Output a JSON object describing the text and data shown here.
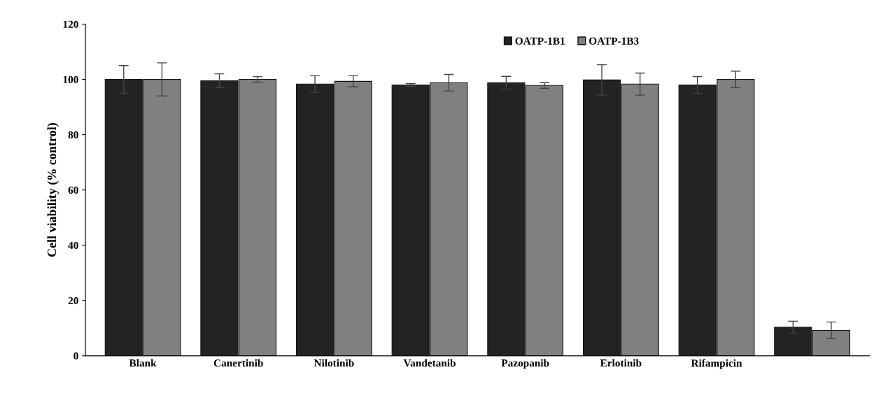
{
  "chart_data": {
    "type": "bar",
    "ylabel": "Cell viability (% control)",
    "categories": [
      "Blank",
      "Canertinib",
      "Nilotinib",
      "Vandetanib",
      "Pazopanib",
      "Erlotinib",
      "Rifampicin",
      null
    ],
    "series": [
      {
        "name": "OATP-1B1",
        "color": "#232323",
        "values": [
          100,
          99.5,
          98.3,
          98,
          98.8,
          99.8,
          98,
          10.3
        ],
        "errors": [
          5,
          2.5,
          3,
          0.5,
          2.3,
          5.5,
          3,
          2.2
        ]
      },
      {
        "name": "OATP-1B3",
        "color": "#808080",
        "values": [
          100,
          100,
          99.3,
          98.8,
          97.8,
          98.3,
          100,
          9.2
        ],
        "errors": [
          6,
          1,
          2,
          3,
          1,
          4,
          3,
          3
        ]
      }
    ],
    "ylim": [
      0,
      120
    ],
    "yticks": [
      0,
      20,
      40,
      60,
      80,
      100,
      120
    ],
    "grid": false,
    "legend": "top"
  }
}
